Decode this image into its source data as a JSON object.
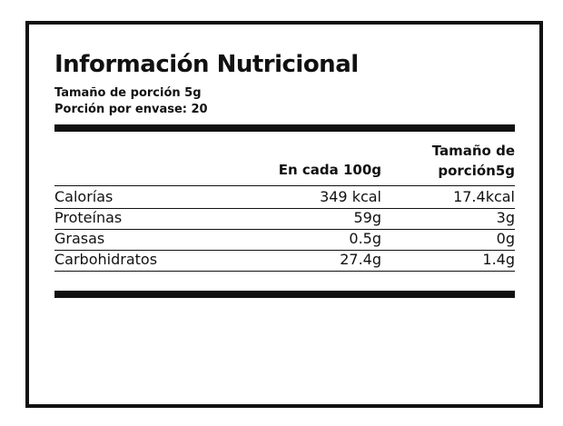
{
  "header": {
    "title": "Información Nutricional",
    "lines": [
      "Tamaño de porción 5g",
      "Porción por envase: 20"
    ]
  },
  "table": {
    "columns": [
      "En cada 100g",
      [
        "Tamaño de",
        "porción5g"
      ]
    ],
    "rows": [
      [
        "Calorías",
        "349 kcal",
        "17.4kcal"
      ],
      [
        "Proteínas",
        "59g",
        "3g"
      ],
      [
        "Grasas",
        "0.5g",
        "0g"
      ],
      [
        "Carbohidratos",
        "27.4g",
        "1.4g"
      ]
    ]
  }
}
